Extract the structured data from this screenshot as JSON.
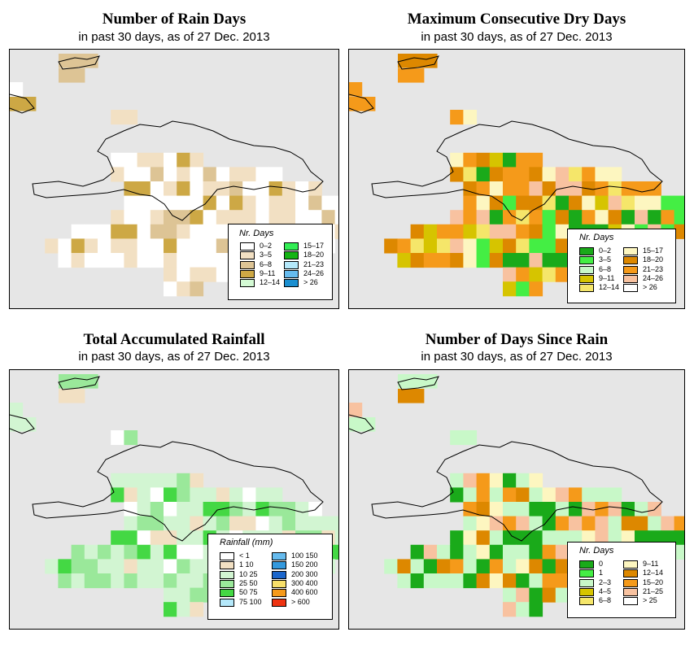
{
  "panels": [
    {
      "id": "rain-days",
      "title": "Number of Rain Days",
      "subtitle": "in past 30 days, as of  27 Dec. 2013",
      "legend_title": "Nr. Days",
      "legend": [
        {
          "label": "0–2",
          "color": "#ffffff"
        },
        {
          "label": "3–5",
          "color": "#f2e0c3"
        },
        {
          "label": "6–8",
          "color": "#ddc495"
        },
        {
          "label": "9–11",
          "color": "#cda845"
        },
        {
          "label": "12–14",
          "color": "#d4fad4"
        },
        {
          "label": "15–17",
          "color": "#33ee55"
        },
        {
          "label": "18–20",
          "color": "#14b414"
        },
        {
          "label": "21–23",
          "color": "#b4e8fa"
        },
        {
          "label": "24–26",
          "color": "#66bbee"
        },
        {
          "label": "> 26",
          "color": "#1a8fd0"
        }
      ]
    },
    {
      "id": "dry-days",
      "title": "Maximum Consecutive Dry Days",
      "subtitle": "in past 30 days, as of  27 Dec. 2013",
      "legend_title": "Nr. Days",
      "legend": [
        {
          "label": "0–2",
          "color": "#1aaa1a"
        },
        {
          "label": "3–5",
          "color": "#44ee44"
        },
        {
          "label": "6–8",
          "color": "#c8f8c8"
        },
        {
          "label": "9–11",
          "color": "#d6c400"
        },
        {
          "label": "12–14",
          "color": "#f5e66a"
        },
        {
          "label": "15–17",
          "color": "#fdf6c0"
        },
        {
          "label": "18–20",
          "color": "#dd8800"
        },
        {
          "label": "21–23",
          "color": "#f59a1a"
        },
        {
          "label": "24–26",
          "color": "#f8c2a0"
        },
        {
          "label": "> 26",
          "color": "#ffffff"
        }
      ]
    },
    {
      "id": "rainfall",
      "title": "Total Accumulated Rainfall",
      "subtitle": "in past 30 days, as of  27 Dec. 2013",
      "legend_title": "Rainfall (mm)",
      "legend": [
        {
          "label": "< 1",
          "color": "#ffffff"
        },
        {
          "label": "1    10",
          "color": "#f2e0c3"
        },
        {
          "label": "10    25",
          "color": "#d2f5d2"
        },
        {
          "label": "25    50",
          "color": "#9ae89a"
        },
        {
          "label": "50    75",
          "color": "#44d844"
        },
        {
          "label": "75  100",
          "color": "#b4e8fa"
        },
        {
          "label": "100  150",
          "color": "#66bbee"
        },
        {
          "label": "150  200",
          "color": "#3399dd"
        },
        {
          "label": "200  300",
          "color": "#1a66cc"
        },
        {
          "label": "300  400",
          "color": "#f8e06a"
        },
        {
          "label": "400  600",
          "color": "#f59a1a"
        },
        {
          "label": "> 600",
          "color": "#ee3311"
        }
      ]
    },
    {
      "id": "since-rain",
      "title": "Number of Days Since Rain",
      "subtitle": "in past 30 days, as of  27 Dec. 2013",
      "legend_title": "Nr. Days",
      "legend": [
        {
          "label": "0",
          "color": "#1aaa1a"
        },
        {
          "label": "1",
          "color": "#44ee44"
        },
        {
          "label": "2–3",
          "color": "#c8f8c8"
        },
        {
          "label": "4–5",
          "color": "#d6c400"
        },
        {
          "label": "6–8",
          "color": "#f5e66a"
        },
        {
          "label": "9–11",
          "color": "#fdf6c0"
        },
        {
          "label": "12–14",
          "color": "#dd8800"
        },
        {
          "label": "15–20",
          "color": "#f59a1a"
        },
        {
          "label": "21–25",
          "color": "#f8c2a0"
        },
        {
          "label": "> 25",
          "color": "#ffffff"
        }
      ]
    }
  ]
}
